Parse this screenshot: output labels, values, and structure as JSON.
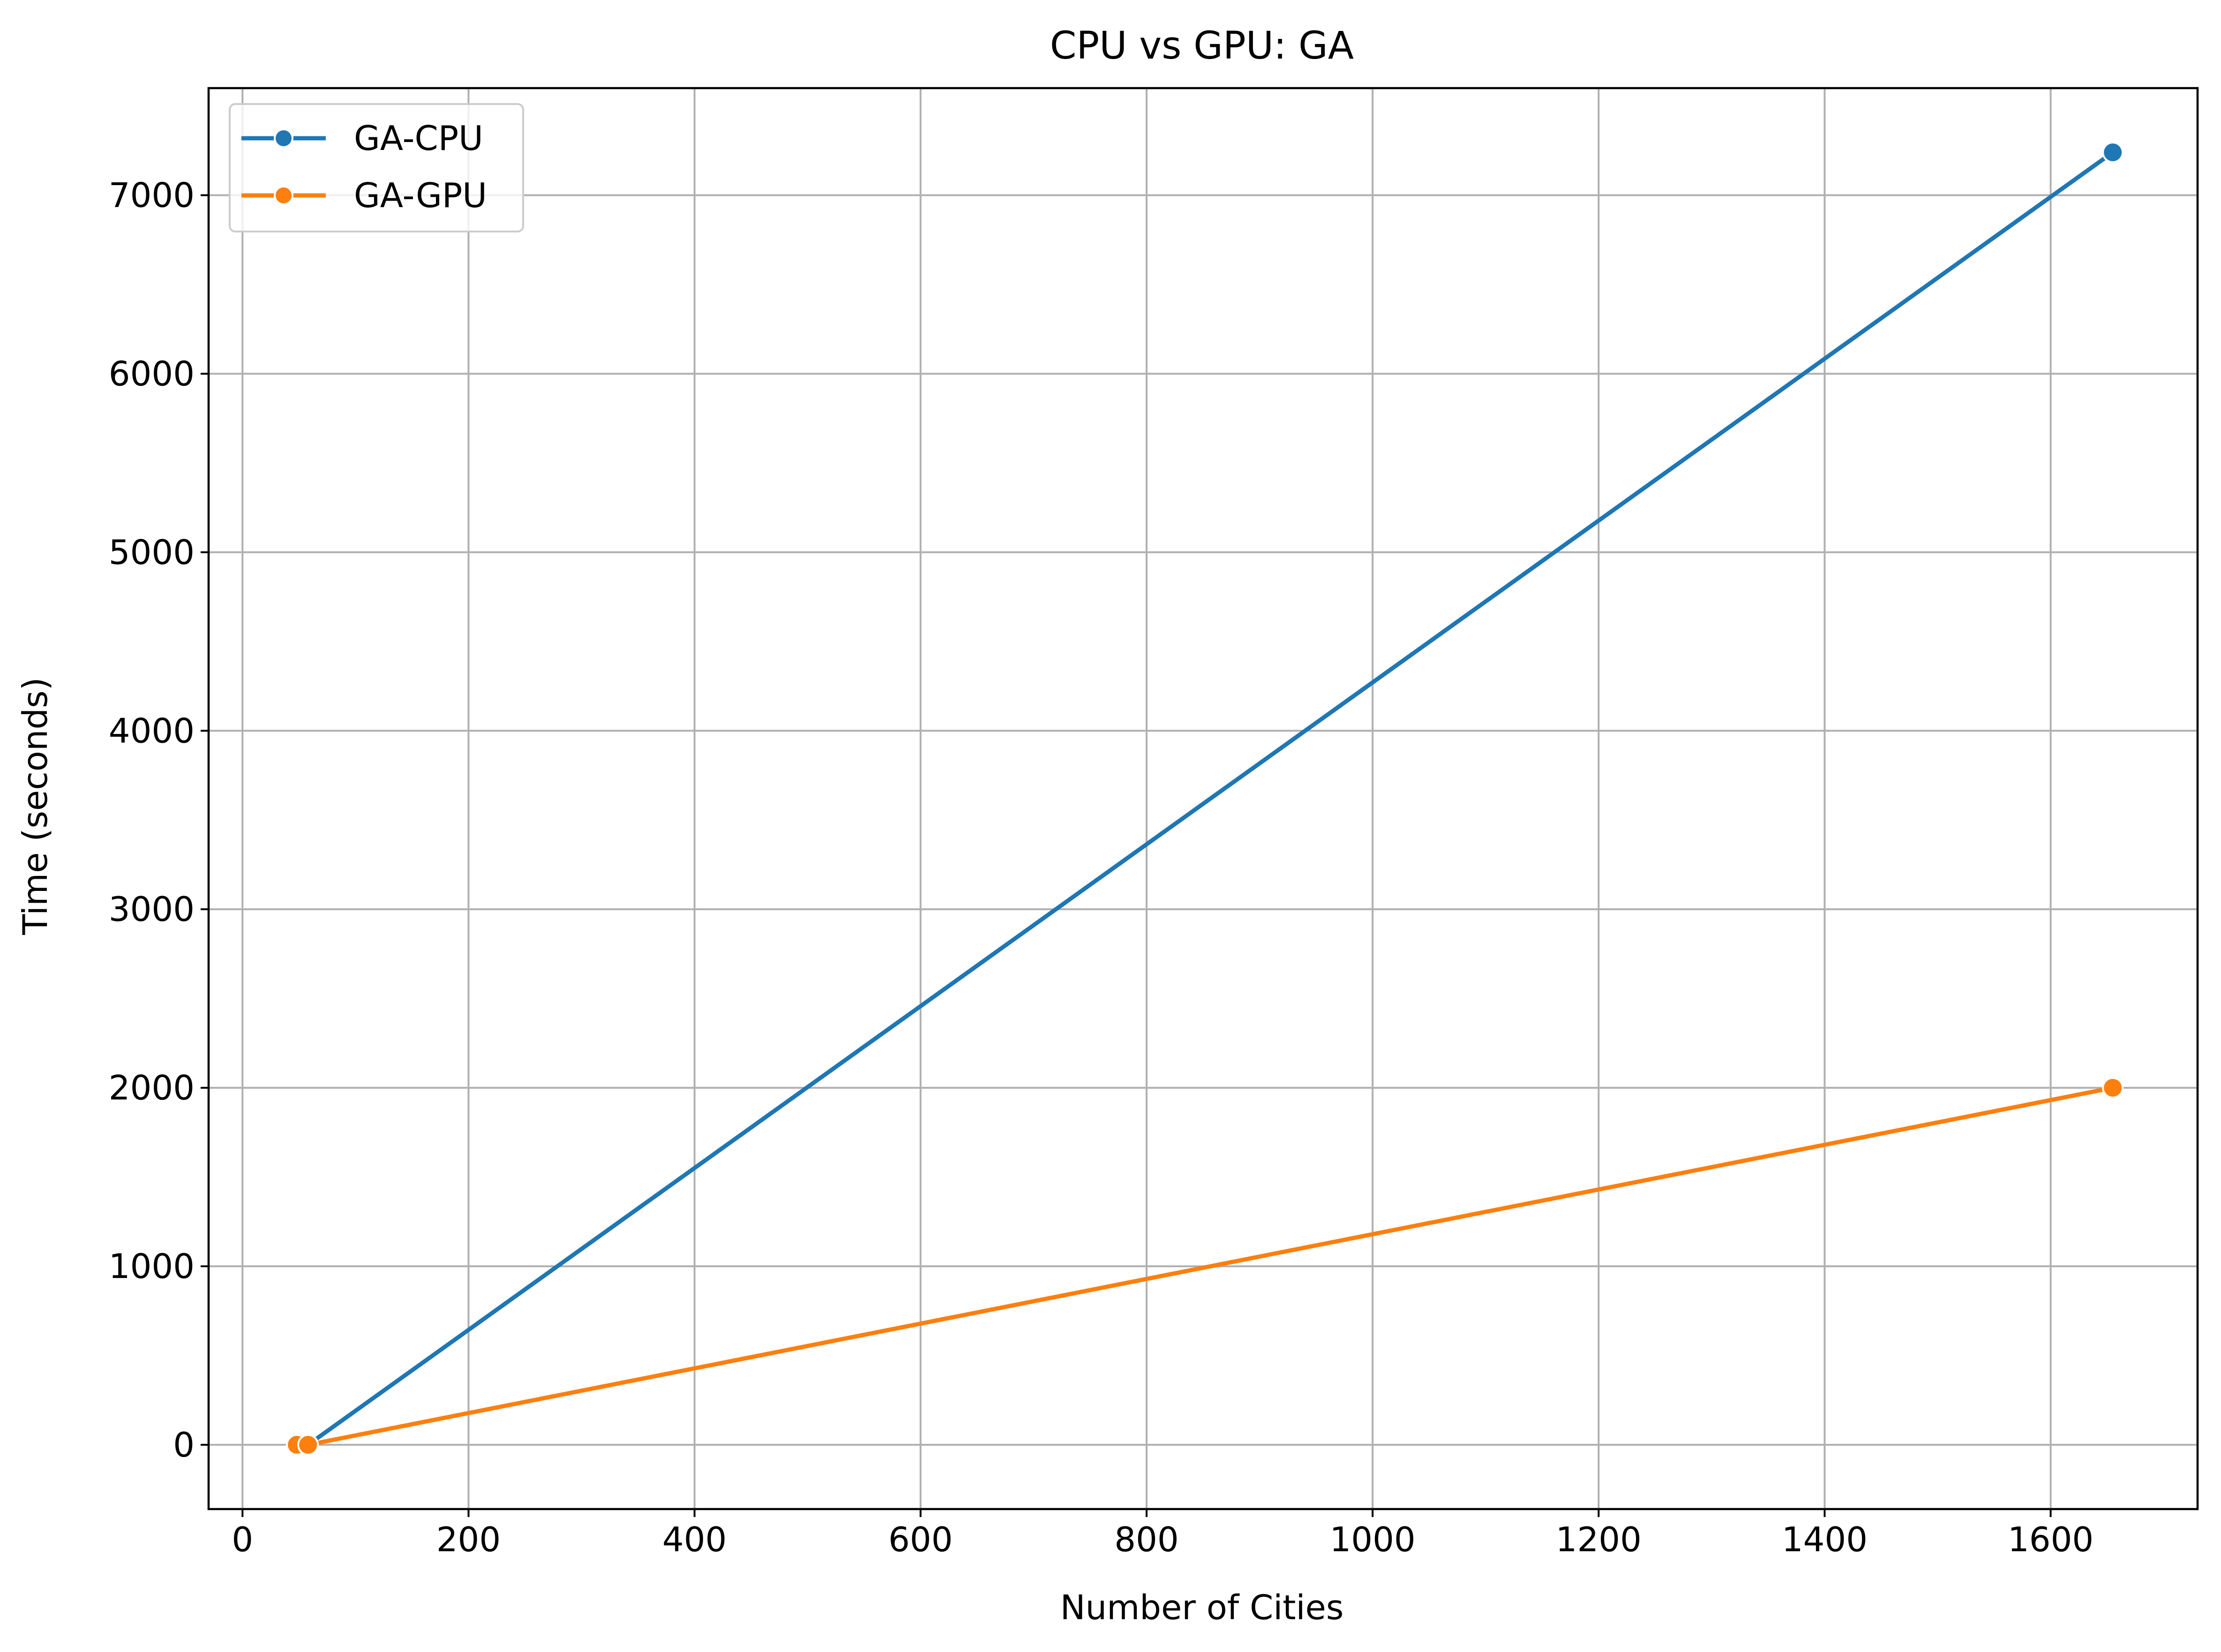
{
  "chart_data": {
    "type": "line",
    "title": "CPU vs GPU: GA",
    "xlabel": "Number of Cities",
    "ylabel": "Time (seconds)",
    "xlim": [
      -30,
      1730
    ],
    "ylim": [
      -360,
      7600
    ],
    "xticks": [
      0,
      200,
      400,
      600,
      800,
      1000,
      1200,
      1400,
      1600
    ],
    "yticks": [
      0,
      1000,
      2000,
      3000,
      4000,
      5000,
      6000,
      7000
    ],
    "grid": true,
    "legend_position": "upper-left",
    "series": [
      {
        "name": "GA-CPU",
        "color": "#1f77b4",
        "x": [
          52,
          58,
          1655
        ],
        "y": [
          0,
          0,
          7240
        ]
      },
      {
        "name": "GA-GPU",
        "color": "#ff7f0e",
        "x": [
          48,
          58,
          1655
        ],
        "y": [
          0,
          0,
          2000
        ]
      }
    ]
  }
}
